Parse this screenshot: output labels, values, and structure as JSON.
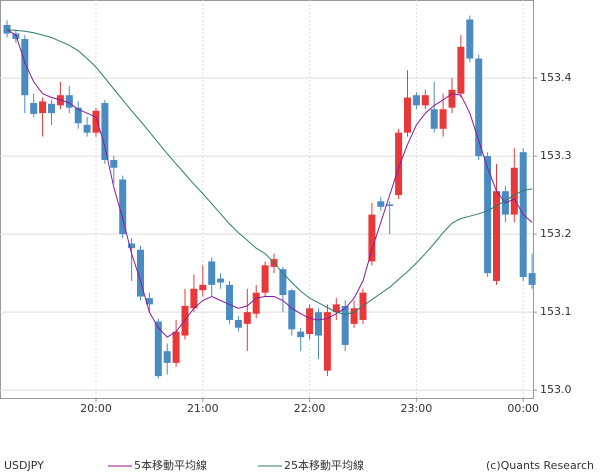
{
  "chart_data": {
    "type": "candlestick",
    "symbol": "USDJPY",
    "copyright": "(c)Quants Research",
    "up_color": "#e8393a",
    "down_color": "#4a8bc2",
    "x": [
      "19:10",
      "19:15",
      "19:20",
      "19:25",
      "19:30",
      "19:35",
      "19:40",
      "19:45",
      "19:50",
      "19:55",
      "20:00",
      "20:05",
      "20:10",
      "20:15",
      "20:20",
      "20:25",
      "20:30",
      "20:35",
      "20:40",
      "20:45",
      "20:50",
      "20:55",
      "21:00",
      "21:05",
      "21:10",
      "21:15",
      "21:20",
      "21:25",
      "21:30",
      "21:35",
      "21:40",
      "21:45",
      "21:50",
      "21:55",
      "22:00",
      "22:05",
      "22:10",
      "22:15",
      "22:20",
      "22:25",
      "22:30",
      "22:35",
      "22:40",
      "22:45",
      "22:50",
      "22:55",
      "23:00",
      "23:05",
      "23:10",
      "23:15",
      "23:20",
      "23:25",
      "23:30",
      "23:35",
      "23:40",
      "23:45",
      "23:50",
      "23:55",
      "00:00",
      "00:05"
    ],
    "open": [
      153.468,
      153.457,
      153.45,
      153.368,
      153.355,
      153.367,
      153.365,
      153.378,
      153.362,
      153.34,
      153.33,
      153.368,
      153.295,
      153.27,
      153.188,
      153.18,
      153.118,
      153.088,
      153.05,
      153.035,
      153.07,
      153.105,
      153.128,
      153.165,
      153.143,
      153.135,
      153.09,
      153.085,
      153.098,
      153.125,
      153.158,
      153.155,
      153.128,
      153.075,
      153.072,
      153.1,
      153.025,
      153.1,
      153.108,
      153.085,
      153.09,
      153.165,
      153.242,
      153.238,
      153.25,
      153.33,
      153.378,
      153.365,
      153.36,
      153.335,
      153.362,
      153.38,
      153.475,
      153.425,
      153.3,
      153.14,
      153.255,
      153.225,
      153.305,
      153.15
    ],
    "high": [
      153.474,
      153.462,
      153.455,
      153.38,
      153.375,
      153.372,
      153.395,
      153.39,
      153.37,
      153.35,
      153.362,
      153.372,
      153.3,
      153.275,
      153.195,
      153.185,
      153.125,
      153.092,
      153.06,
      153.09,
      153.13,
      153.148,
      153.16,
      153.17,
      153.15,
      153.14,
      153.095,
      153.13,
      153.135,
      153.165,
      153.175,
      153.158,
      153.13,
      153.08,
      153.11,
      153.105,
      153.11,
      153.118,
      153.115,
      153.115,
      153.13,
      153.24,
      153.248,
      153.242,
      153.335,
      153.41,
      153.382,
      153.385,
      153.395,
      153.38,
      153.4,
      153.455,
      153.48,
      153.43,
      153.305,
      153.29,
      153.262,
      153.31,
      153.31,
      153.175
    ],
    "low": [
      153.452,
      153.445,
      153.355,
      153.35,
      153.325,
      153.34,
      153.36,
      153.355,
      153.335,
      153.325,
      153.325,
      153.29,
      153.265,
      153.195,
      153.14,
      153.115,
      153.1,
      153.015,
      153.02,
      153.03,
      153.065,
      153.1,
      153.12,
      153.12,
      153.13,
      153.085,
      153.075,
      153.05,
      153.092,
      153.12,
      153.15,
      153.1,
      153.07,
      153.05,
      153.065,
      153.04,
      153.018,
      153.09,
      153.05,
      153.08,
      153.085,
      153.16,
      153.23,
      153.2,
      153.245,
      153.325,
      153.36,
      153.36,
      153.33,
      153.325,
      153.355,
      153.375,
      153.42,
      153.295,
      153.145,
      153.135,
      153.215,
      153.215,
      153.14,
      153.13
    ],
    "close": [
      153.457,
      153.45,
      153.378,
      153.354,
      153.37,
      153.355,
      153.378,
      153.362,
      153.342,
      153.33,
      153.358,
      153.295,
      153.285,
      153.2,
      153.182,
      153.12,
      153.11,
      153.018,
      153.035,
      153.075,
      153.108,
      153.13,
      153.135,
      153.135,
      153.138,
      153.09,
      153.08,
      153.1,
      153.125,
      153.16,
      153.168,
      153.122,
      153.078,
      153.068,
      153.105,
      153.07,
      153.1,
      153.11,
      153.058,
      153.105,
      153.125,
      153.225,
      153.235,
      153.236,
      153.33,
      153.375,
      153.365,
      153.378,
      153.335,
      153.36,
      153.385,
      153.44,
      153.425,
      153.3,
      153.15,
      153.255,
      153.225,
      153.285,
      153.145,
      153.135
    ],
    "series": [
      {
        "name": "5本移動平均線",
        "color": "#8b1a9a",
        "values": [
          153.462,
          153.455,
          153.42,
          153.395,
          153.38,
          153.375,
          153.372,
          153.368,
          153.36,
          153.355,
          153.35,
          153.312,
          153.26,
          153.22,
          153.175,
          153.14,
          153.1,
          153.08,
          153.068,
          153.075,
          153.09,
          153.105,
          153.115,
          153.12,
          153.115,
          153.11,
          153.105,
          153.108,
          153.118,
          153.12,
          153.12,
          153.115,
          153.105,
          153.098,
          153.092,
          153.09,
          153.092,
          153.098,
          153.105,
          153.118,
          153.14,
          153.18,
          153.215,
          153.25,
          153.285,
          153.315,
          153.34,
          153.355,
          153.365,
          153.372,
          153.38,
          153.378,
          153.355,
          153.32,
          153.285,
          153.255,
          153.24,
          153.245,
          153.225,
          153.215
        ]
      },
      {
        "name": "25本移動平均線",
        "color": "#2e7d6e",
        "values": [
          153.462,
          153.461,
          153.46,
          153.458,
          153.455,
          153.452,
          153.447,
          153.442,
          153.435,
          153.425,
          153.414,
          153.4,
          153.386,
          153.372,
          153.358,
          153.345,
          153.331,
          153.317,
          153.303,
          153.29,
          153.277,
          153.264,
          153.252,
          153.239,
          153.226,
          153.213,
          153.202,
          153.192,
          153.182,
          153.175,
          153.163,
          153.15,
          153.138,
          153.127,
          153.118,
          153.112,
          153.106,
          153.1,
          153.097,
          153.1,
          153.108,
          153.116,
          153.124,
          153.132,
          153.142,
          153.152,
          153.163,
          153.175,
          153.188,
          153.202,
          153.214,
          153.22,
          153.223,
          153.226,
          153.23,
          153.236,
          153.243,
          153.25,
          153.256,
          153.258
        ]
      }
    ],
    "ylim": [
      152.99,
      153.5
    ],
    "yticks": [
      {
        "value": 153,
        "label": "153.0"
      },
      153.1,
      153.2,
      153.3,
      153.4
    ],
    "xticks": [
      "20:00",
      "21:00",
      "22:00",
      "23:00",
      "00:00"
    ],
    "grid": true
  }
}
